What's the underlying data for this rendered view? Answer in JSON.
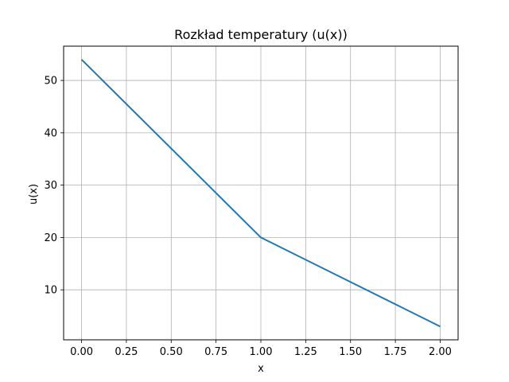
{
  "chart_data": {
    "type": "line",
    "title": "Rozkład temperatury (u(x))",
    "xlabel": "x",
    "ylabel": "u(x)",
    "xlim": [
      -0.1,
      2.1
    ],
    "ylim": [
      0.45,
      56.55
    ],
    "xticks": [
      0.0,
      0.25,
      0.5,
      0.75,
      1.0,
      1.25,
      1.5,
      1.75,
      2.0
    ],
    "xtick_labels": [
      "0.00",
      "0.25",
      "0.50",
      "0.75",
      "1.00",
      "1.25",
      "1.50",
      "1.75",
      "2.00"
    ],
    "yticks": [
      10,
      20,
      30,
      40,
      50
    ],
    "ytick_labels": [
      "10",
      "20",
      "30",
      "40",
      "50"
    ],
    "grid": true,
    "series": [
      {
        "color": "#1f77b4",
        "x": [
          0.0,
          1.0,
          2.0
        ],
        "y": [
          54,
          20,
          3
        ]
      }
    ]
  }
}
